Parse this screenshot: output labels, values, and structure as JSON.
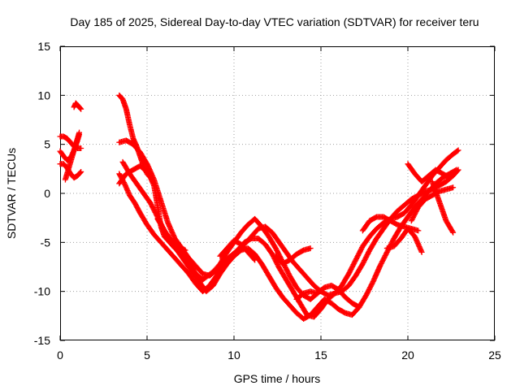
{
  "chart_data": {
    "type": "scatter",
    "title": "Day 185 of 2025, Sidereal Day-to-day VTEC variation (SDTVAR) for receiver teru",
    "xlabel": "GPS time / hours",
    "ylabel": "SDTVAR / TECUs",
    "xlim": [
      0,
      25
    ],
    "ylim": [
      -15,
      15
    ],
    "xticks": [
      0,
      5,
      10,
      15,
      20,
      25
    ],
    "yticks": [
      -15,
      -10,
      -5,
      0,
      5,
      10,
      15
    ],
    "xtick_labels": [
      "0",
      "5",
      "10",
      "15",
      "20",
      "25"
    ],
    "ytick_labels": [
      "-15",
      "-10",
      "-5",
      "0",
      "5",
      "10",
      "15"
    ],
    "grid": true,
    "marker": "plus",
    "color": "#ff0000",
    "series": [
      {
        "x": [
          0.0,
          0.2,
          0.4,
          0.6,
          0.8,
          1.0,
          1.1
        ],
        "y": [
          4.3,
          3.8,
          3.4,
          3.6,
          4.4,
          5.4,
          6.0
        ]
      },
      {
        "x": [
          0.0,
          0.2,
          0.4,
          0.6,
          0.8,
          1.0,
          1.2
        ],
        "y": [
          5.8,
          5.8,
          5.6,
          5.2,
          4.8,
          4.6,
          4.6
        ]
      },
      {
        "x": [
          0.0,
          0.2,
          0.4,
          0.6,
          0.8,
          1.0,
          1.2
        ],
        "y": [
          3.0,
          3.0,
          2.6,
          2.0,
          1.6,
          1.8,
          2.2
        ]
      },
      {
        "x": [
          0.3,
          0.5,
          0.7,
          0.9,
          1.1
        ],
        "y": [
          1.4,
          2.6,
          3.8,
          5.0,
          6.2
        ]
      },
      {
        "x": [
          0.8,
          0.9,
          1.0,
          1.1,
          1.2
        ],
        "y": [
          8.8,
          9.2,
          9.0,
          8.8,
          8.6
        ]
      },
      {
        "x": [
          3.4,
          3.6,
          3.8,
          4.0,
          4.2,
          4.4,
          4.6,
          4.8,
          5.0,
          5.2,
          5.4,
          5.6,
          5.8,
          6.0,
          6.3,
          6.6,
          7.0,
          7.4,
          7.8,
          8.2,
          8.5,
          8.8,
          9.2,
          9.6,
          10.0,
          10.4,
          10.8,
          11.2,
          11.6,
          12.0,
          12.4,
          12.8,
          13.2,
          13.6,
          14.0,
          14.4,
          14.8,
          15.2,
          15.6,
          16.0,
          16.4,
          16.8,
          17.2
        ],
        "y": [
          10.0,
          9.6,
          8.6,
          7.0,
          5.6,
          4.8,
          3.8,
          2.8,
          2.0,
          1.6,
          0.8,
          -1.2,
          -3.4,
          -4.4,
          -5.0,
          -5.6,
          -6.0,
          -7.0,
          -8.2,
          -8.8,
          -8.4,
          -8.0,
          -7.2,
          -6.0,
          -5.0,
          -4.0,
          -3.2,
          -2.6,
          -3.4,
          -4.4,
          -5.6,
          -7.0,
          -8.4,
          -9.6,
          -10.4,
          -10.8,
          -10.2,
          -9.6,
          -9.4,
          -9.8,
          -10.6,
          -11.2,
          -11.6
        ]
      },
      {
        "x": [
          3.4,
          3.7,
          4.0,
          4.3,
          4.6,
          5.0,
          5.4,
          5.8,
          6.2,
          6.6,
          7.0,
          7.4,
          7.8,
          8.2,
          8.6,
          9.0,
          9.4,
          9.8,
          10.2,
          10.6,
          11.0,
          11.4,
          11.8,
          12.2,
          12.6,
          13.0,
          13.4,
          13.8,
          14.2,
          14.6,
          15.0,
          15.4,
          15.8,
          16.2,
          16.6,
          17.0,
          17.4,
          17.8,
          18.2,
          18.6,
          19.0,
          19.4,
          19.8,
          20.2,
          20.6,
          21.0,
          21.4,
          21.8,
          22.2,
          22.6,
          22.9
        ],
        "y": [
          2.0,
          1.0,
          -0.2,
          -1.0,
          -2.0,
          -3.2,
          -4.2,
          -5.0,
          -5.8,
          -6.6,
          -7.4,
          -8.2,
          -9.2,
          -10.0,
          -9.4,
          -8.4,
          -7.4,
          -6.6,
          -5.8,
          -5.0,
          -4.6,
          -4.6,
          -5.2,
          -6.2,
          -7.6,
          -8.8,
          -10.0,
          -11.2,
          -12.4,
          -12.6,
          -11.8,
          -10.8,
          -10.2,
          -10.0,
          -9.4,
          -8.4,
          -7.2,
          -5.8,
          -4.6,
          -3.6,
          -2.6,
          -1.8,
          -1.2,
          -0.6,
          -0.2,
          0.2,
          0.4,
          0.8,
          1.2,
          1.8,
          2.4
        ]
      },
      {
        "x": [
          3.6,
          4.0,
          4.4,
          4.8,
          5.2,
          5.6,
          6.0,
          6.4,
          6.8,
          7.2,
          7.6,
          8.0,
          8.4,
          8.8,
          9.2,
          9.6,
          10.0,
          10.4,
          10.8,
          11.2,
          11.6,
          12.0,
          12.4,
          12.8,
          13.2,
          13.6,
          14.0,
          14.4,
          14.8,
          15.2,
          15.6,
          16.0,
          16.4,
          16.8,
          17.2,
          17.6,
          18.0,
          18.4,
          18.8,
          19.2,
          19.6,
          20.0,
          20.4,
          20.8,
          21.2,
          21.6,
          22.0,
          22.4,
          22.8
        ],
        "y": [
          3.2,
          2.0,
          1.0,
          0.0,
          -1.0,
          -2.4,
          -3.8,
          -5.0,
          -6.0,
          -7.0,
          -8.0,
          -9.0,
          -10.0,
          -9.4,
          -8.2,
          -7.2,
          -6.4,
          -5.8,
          -5.6,
          -6.2,
          -7.2,
          -8.4,
          -9.6,
          -10.6,
          -11.4,
          -12.2,
          -12.8,
          -12.4,
          -11.6,
          -10.8,
          -11.2,
          -11.8,
          -12.2,
          -12.4,
          -11.6,
          -10.4,
          -9.0,
          -7.4,
          -6.0,
          -4.6,
          -3.4,
          -2.4,
          -1.4,
          -0.6,
          0.2,
          1.0,
          1.6,
          2.0,
          2.4
        ]
      },
      {
        "x": [
          3.4,
          3.8,
          4.2,
          4.6,
          5.0,
          5.4,
          5.8,
          6.2,
          6.6,
          7.0,
          7.4,
          7.8,
          8.2,
          8.6,
          9.0,
          9.4,
          9.8,
          10.2,
          10.6,
          11.0,
          11.4,
          11.8,
          12.2,
          12.6,
          13.0,
          13.4,
          13.8,
          14.2,
          14.6,
          15.0,
          15.4,
          15.8,
          16.2,
          16.6,
          17.0,
          17.4,
          17.8,
          18.2,
          18.6,
          19.0,
          19.4,
          19.8,
          20.2,
          20.6,
          21.0,
          21.4,
          21.8,
          22.2,
          22.6,
          22.9
        ],
        "y": [
          5.2,
          5.4,
          5.0,
          4.2,
          3.0,
          1.4,
          -0.8,
          -3.0,
          -4.6,
          -5.6,
          -6.6,
          -7.4,
          -8.2,
          -8.4,
          -7.8,
          -7.0,
          -6.4,
          -5.8,
          -5.2,
          -4.4,
          -3.6,
          -3.4,
          -4.0,
          -5.0,
          -6.0,
          -7.0,
          -7.8,
          -8.6,
          -9.4,
          -10.0,
          -10.4,
          -10.2,
          -9.4,
          -8.2,
          -6.8,
          -5.4,
          -4.4,
          -3.6,
          -3.0,
          -2.6,
          -2.4,
          -2.0,
          -1.2,
          -0.2,
          0.8,
          1.8,
          2.6,
          3.4,
          4.0,
          4.4
        ]
      },
      {
        "x": [
          5.6,
          6.0,
          6.4,
          6.8,
          7.2
        ],
        "y": [
          -2.6,
          -3.8,
          -4.8,
          -5.4,
          -5.8
        ]
      },
      {
        "x": [
          9.2,
          9.6,
          10.0,
          10.4,
          10.8,
          11.2
        ],
        "y": [
          -6.4,
          -5.6,
          -4.8,
          -5.2,
          -6.0,
          -6.8
        ]
      },
      {
        "x": [
          12.4,
          12.8,
          13.2,
          13.6,
          14.0,
          14.4
        ],
        "y": [
          -6.4,
          -7.2,
          -6.8,
          -6.2,
          -5.8,
          -5.6
        ]
      },
      {
        "x": [
          13.6,
          14.0,
          14.4,
          14.8
        ],
        "y": [
          -10.8,
          -10.2,
          -10.0,
          -10.2
        ]
      },
      {
        "x": [
          17.4,
          17.8,
          18.2,
          18.6,
          19.0,
          19.4,
          19.8,
          20.2,
          20.6
        ],
        "y": [
          -3.8,
          -2.8,
          -2.4,
          -2.4,
          -2.8,
          -3.2,
          -3.4,
          -3.6,
          -3.8
        ]
      },
      {
        "x": [
          18.8,
          19.2,
          19.6,
          20.0,
          20.4,
          20.8
        ],
        "y": [
          -5.6,
          -5.4,
          -4.6,
          -3.6,
          -4.4,
          -6.0
        ]
      },
      {
        "x": [
          20.0,
          20.4,
          20.8,
          21.2,
          21.6,
          22.0,
          22.4
        ],
        "y": [
          3.0,
          2.0,
          1.2,
          1.8,
          2.4,
          2.0,
          1.6
        ]
      },
      {
        "x": [
          20.2,
          20.6,
          21.0,
          21.4,
          21.8,
          22.2,
          22.6
        ],
        "y": [
          -2.8,
          -1.4,
          -0.6,
          -0.2,
          0.2,
          0.4,
          0.6
        ]
      },
      {
        "x": [
          21.4,
          21.8,
          22.2,
          22.6
        ],
        "y": [
          1.2,
          -0.8,
          -2.8,
          -4.0
        ]
      },
      {
        "x": [
          3.4,
          3.8,
          4.2,
          4.6,
          5.0
        ],
        "y": [
          1.0,
          2.0,
          2.4,
          2.8,
          2.2
        ]
      }
    ]
  }
}
